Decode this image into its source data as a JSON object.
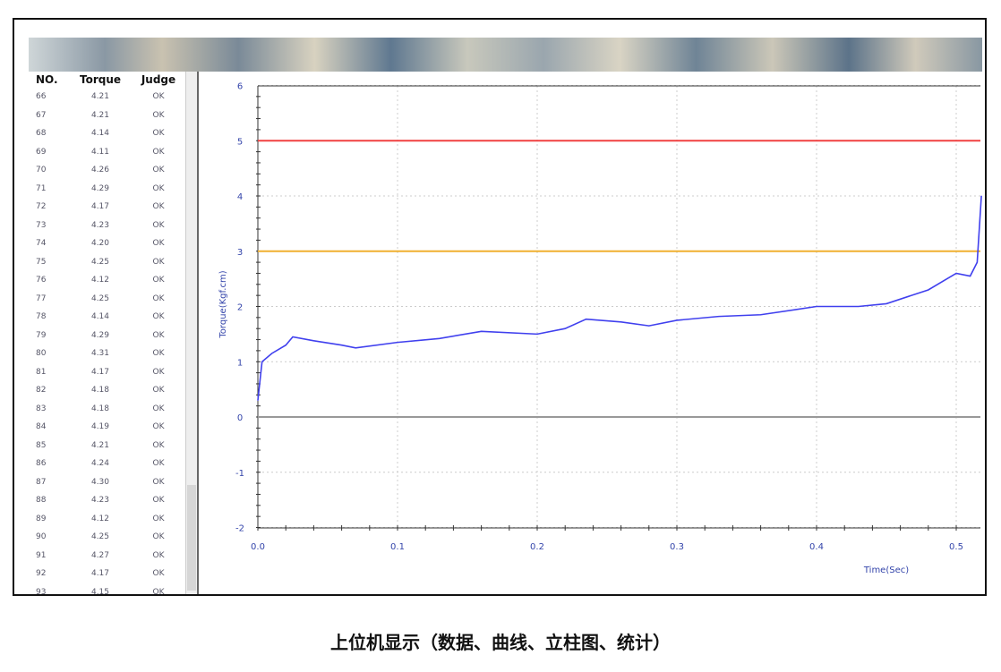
{
  "table": {
    "headers": [
      "NO.",
      "Torque",
      "Judge"
    ],
    "rows": [
      [
        "66",
        "4.21",
        "OK"
      ],
      [
        "67",
        "4.21",
        "OK"
      ],
      [
        "68",
        "4.14",
        "OK"
      ],
      [
        "69",
        "4.11",
        "OK"
      ],
      [
        "70",
        "4.26",
        "OK"
      ],
      [
        "71",
        "4.29",
        "OK"
      ],
      [
        "72",
        "4.17",
        "OK"
      ],
      [
        "73",
        "4.23",
        "OK"
      ],
      [
        "74",
        "4.20",
        "OK"
      ],
      [
        "75",
        "4.25",
        "OK"
      ],
      [
        "76",
        "4.12",
        "OK"
      ],
      [
        "77",
        "4.25",
        "OK"
      ],
      [
        "78",
        "4.14",
        "OK"
      ],
      [
        "79",
        "4.29",
        "OK"
      ],
      [
        "80",
        "4.31",
        "OK"
      ],
      [
        "81",
        "4.17",
        "OK"
      ],
      [
        "82",
        "4.18",
        "OK"
      ],
      [
        "83",
        "4.18",
        "OK"
      ],
      [
        "84",
        "4.19",
        "OK"
      ],
      [
        "85",
        "4.21",
        "OK"
      ],
      [
        "86",
        "4.24",
        "OK"
      ],
      [
        "87",
        "4.30",
        "OK"
      ],
      [
        "88",
        "4.23",
        "OK"
      ],
      [
        "89",
        "4.12",
        "OK"
      ],
      [
        "90",
        "4.25",
        "OK"
      ],
      [
        "91",
        "4.27",
        "OK"
      ],
      [
        "92",
        "4.17",
        "OK"
      ],
      [
        "93",
        "4.15",
        "OK"
      ]
    ]
  },
  "chart_data": {
    "type": "line",
    "xlabel": "Time(Sec)",
    "ylabel": "Torque(Kgf.cm)",
    "xlim": [
      0,
      0.517
    ],
    "ylim": [
      -2,
      6
    ],
    "grid": true,
    "xticks": [
      "0.0",
      "0.1",
      "0.2",
      "0.3",
      "0.4",
      "0.5"
    ],
    "yticks": [
      "6",
      "5",
      "4",
      "3",
      "2",
      "1",
      "0",
      "-1",
      "-2"
    ],
    "limits": [
      {
        "value": 5,
        "color": "#f04040"
      },
      {
        "value": 3,
        "color": "#f0b030"
      },
      {
        "value": 0,
        "color": "#999999"
      }
    ],
    "series": [
      {
        "color": "#4040ee",
        "x": [
          0,
          0.003,
          0.01,
          0.02,
          0.025,
          0.04,
          0.06,
          0.07,
          0.1,
          0.13,
          0.16,
          0.2,
          0.22,
          0.235,
          0.26,
          0.28,
          0.3,
          0.33,
          0.36,
          0.4,
          0.43,
          0.45,
          0.48,
          0.5,
          0.51,
          0.515,
          0.518
        ],
        "y": [
          0.3,
          1.0,
          1.15,
          1.3,
          1.45,
          1.38,
          1.3,
          1.25,
          1.35,
          1.42,
          1.55,
          1.5,
          1.6,
          1.77,
          1.72,
          1.65,
          1.75,
          1.82,
          1.85,
          2.0,
          2.0,
          2.05,
          2.3,
          2.6,
          2.55,
          2.8,
          4.0
        ]
      }
    ]
  },
  "caption": "上位机显示（数据、曲线、立柱图、统计）"
}
